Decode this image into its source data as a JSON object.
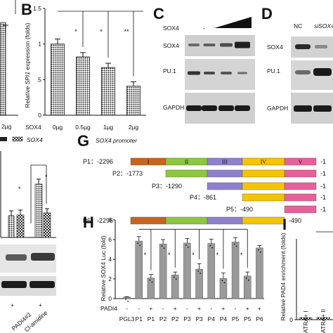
{
  "panels": {
    "A": {
      "partial_x_label": "2µg",
      "legend_series": "SOX4"
    },
    "B": {
      "letter": "B",
      "ylabel_parts": [
        "Relative ",
        "SPI1",
        " expression (folds)"
      ],
      "row_label": "SOX4",
      "chart_data": {
        "type": "bar",
        "categories": [
          "0µg",
          "0.5µg",
          "1µg",
          "2µg"
        ],
        "values": [
          1.0,
          0.82,
          0.67,
          0.41
        ],
        "errors": [
          0.07,
          0.06,
          0.06,
          0.06
        ],
        "ylim": [
          0,
          1.5
        ],
        "yticks": [
          "0",
          ".5",
          "1",
          "1.5"
        ],
        "significance": [
          "*",
          "*",
          "**"
        ]
      }
    },
    "C": {
      "letter": "C",
      "treatment_label": "SOX4",
      "treatment_minus": "-",
      "rows": [
        "SOX4",
        "PU.1",
        "GAPDH"
      ]
    },
    "D": {
      "letter": "D",
      "col_labels": [
        "NC",
        "siSOX4"
      ],
      "rows": [
        "SOX4",
        "PU.1",
        "GAPDH"
      ]
    },
    "F_partial": {
      "significance": [
        "*",
        "*"
      ],
      "condition_labels": [
        "PADI4#2",
        "Cl-amidine"
      ],
      "plus_signs": [
        "+",
        "+"
      ]
    },
    "G": {
      "letter": "G",
      "title_parts": [
        "SOX4",
        " promoter"
      ],
      "domains": [
        "I",
        "II",
        "III",
        "IV",
        "V"
      ],
      "domain_colors": [
        "#c8641e",
        "#8dc63f",
        "#8f80cf",
        "#f5c400",
        "#e8609a"
      ],
      "constructs": [
        {
          "name": "P1",
          "start": "-2296",
          "end": "-1"
        },
        {
          "name": "P2",
          "start": "-1773",
          "end": "-1"
        },
        {
          "name": "P3",
          "start": "-1290",
          "end": "-1"
        },
        {
          "name": "P4",
          "start": "-861",
          "end": "-1"
        },
        {
          "name": "P5",
          "start": "-490",
          "end": "-1"
        },
        {
          "name": "P6",
          "start": "-2296",
          "end": "-490"
        }
      ]
    },
    "H": {
      "letter": "H",
      "ylabel": "Relative SOX4 Luc (fold)",
      "row_label": "PADI4",
      "chart_data": {
        "type": "bar",
        "categories": [
          "PGL3",
          "P1",
          "P1",
          "P2",
          "P2",
          "P3",
          "P3",
          "P4",
          "P4",
          "P5",
          "P5",
          "P6"
        ],
        "padi4": [
          "-",
          "-",
          "+",
          "-",
          "+",
          "-",
          "+",
          "-",
          "+",
          "-",
          "+",
          "+"
        ],
        "values": [
          0.15,
          5.85,
          2.1,
          5.55,
          2.4,
          5.65,
          3.0,
          5.6,
          2.05,
          5.75,
          2.3,
          5.15
        ],
        "errors": [
          0.05,
          0.45,
          0.35,
          0.45,
          0.3,
          0.45,
          0.55,
          0.45,
          0.55,
          0.45,
          0.4,
          0.25
        ],
        "ylim": [
          0,
          8
        ],
        "yticks": [
          "0",
          "2",
          "4",
          "6",
          "8"
        ],
        "significance": [
          "*",
          "*",
          "*",
          "*",
          "*"
        ]
      }
    },
    "I": {
      "letter": "I",
      "ylabel": "Relative PAD4 enrichment (folds)",
      "chart_data": {
        "type": "bar",
        "categories": [
          "ATRA+ I",
          "ATRA+ II"
        ],
        "values": [
          0.15,
          0.15
        ],
        "ytick0": "0"
      }
    }
  }
}
